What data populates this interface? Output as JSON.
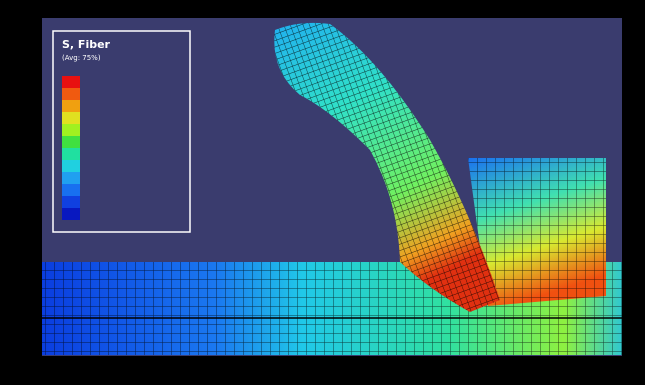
{
  "legend": {
    "title": "S, Fiber",
    "subtitle": "(Avg: 75%)"
  }
}
